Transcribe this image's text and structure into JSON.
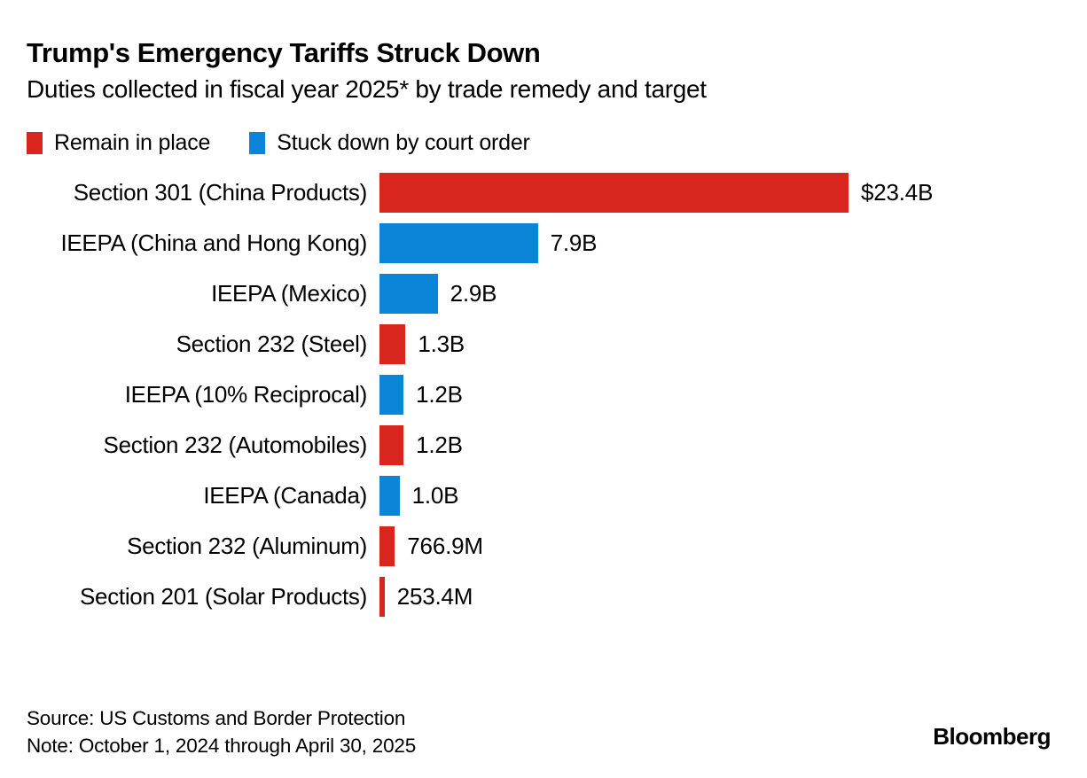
{
  "header": {
    "title": "Trump's Emergency Tariffs Struck Down",
    "subtitle": "Duties collected in fiscal year 2025* by trade remedy and target"
  },
  "legend": [
    {
      "label": "Remain in place",
      "status": "remain",
      "color": "#d8261f"
    },
    {
      "label": "Stuck down by court order",
      "status": "struck_down",
      "color": "#0a85d8"
    }
  ],
  "chart_data": {
    "type": "bar",
    "orientation": "horizontal",
    "title": "Trump's Emergency Tariffs Struck Down",
    "subtitle": "Duties collected in fiscal year 2025* by trade remedy and target",
    "unit": "US dollars collected",
    "xlim_billions": [
      0,
      23.4
    ],
    "grid": false,
    "legend_position": "top",
    "colors": {
      "remain": "#d8261f",
      "struck_down": "#0a85d8"
    },
    "rows": [
      {
        "category": "Section 301 (China Products)",
        "value_billions": 23.4,
        "label": "$23.4B",
        "status": "remain"
      },
      {
        "category": "IEEPA (China and Hong Kong)",
        "value_billions": 7.9,
        "label": "7.9B",
        "status": "struck_down"
      },
      {
        "category": "IEEPA (Mexico)",
        "value_billions": 2.9,
        "label": "2.9B",
        "status": "struck_down"
      },
      {
        "category": "Section 232 (Steel)",
        "value_billions": 1.3,
        "label": "1.3B",
        "status": "remain"
      },
      {
        "category": "IEEPA (10% Reciprocal)",
        "value_billions": 1.2,
        "label": "1.2B",
        "status": "struck_down"
      },
      {
        "category": "Section 232 (Automobiles)",
        "value_billions": 1.2,
        "label": "1.2B",
        "status": "remain"
      },
      {
        "category": "IEEPA (Canada)",
        "value_billions": 1.0,
        "label": "1.0B",
        "status": "struck_down"
      },
      {
        "category": "Section 232 (Aluminum)",
        "value_billions": 0.7669,
        "label": "766.9M",
        "status": "remain"
      },
      {
        "category": "Section 201 (Solar Products)",
        "value_billions": 0.2534,
        "label": "253.4M",
        "status": "remain"
      }
    ]
  },
  "footer": {
    "source": "Source: US Customs and Border Protection",
    "note": "Note: October 1, 2024 through April 30, 2025",
    "brand": "Bloomberg"
  }
}
